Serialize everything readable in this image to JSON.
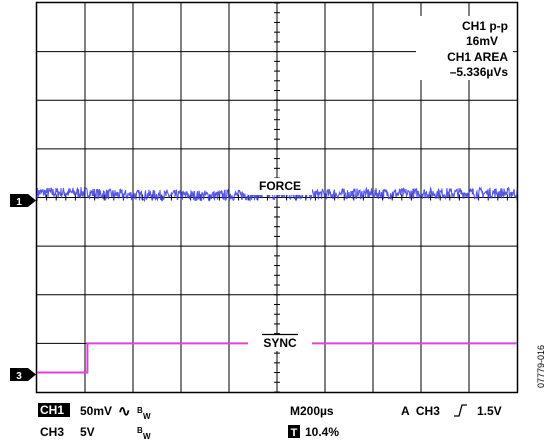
{
  "chart_data": {
    "type": "line",
    "title": "",
    "grid": true,
    "divisions": {
      "x": 10,
      "y": 8
    },
    "x": {
      "unit": "s",
      "per_division": 0.0002,
      "range_divisions": [
        0,
        10
      ]
    },
    "series": [
      {
        "label": "FORCE",
        "channel": "CH1",
        "color": "#3a3ae0",
        "ground_marker": "1",
        "ground_division_from_top": 3.9,
        "volts_per_division": 0.05,
        "points": [
          [
            0.0,
            0.0
          ],
          [
            1.1,
            0.0
          ],
          [
            1.3,
            -0.0015
          ],
          [
            2.0,
            -0.0025
          ],
          [
            3.5,
            -0.003
          ],
          [
            5.0,
            -0.002
          ],
          [
            7.0,
            -0.001
          ],
          [
            9.0,
            -0.0005
          ],
          [
            10.0,
            -0.0003
          ]
        ],
        "noise_pp_volts": 0.016
      },
      {
        "label": "SYNC",
        "label_overline": true,
        "channel": "CH3",
        "color": "#e040e0",
        "ground_marker": "3",
        "ground_division_from_top": 7.6,
        "volts_per_division": 5,
        "points": [
          [
            0.0,
            0.0
          ],
          [
            1.05,
            0.0
          ],
          [
            1.05,
            3.0
          ],
          [
            10.0,
            3.0
          ]
        ]
      }
    ],
    "measurements": [
      {
        "label": "CH1 p-p",
        "value": "16mV"
      },
      {
        "label": "CH1 AREA",
        "value": "–5.336µVs"
      }
    ]
  },
  "status": {
    "ch1_tag": "CH1",
    "ch1_scale": "50mV",
    "coupling_symbol": "∿",
    "bw_label": "B",
    "bw_sub": "W",
    "ch3_tag": "CH3",
    "ch3_scale": "5V",
    "timebase": "M200µs",
    "trigger": "A  CH3",
    "trigger_level": "1.5V",
    "trigger_pos_tag": "T",
    "trigger_pos": "10.4%"
  },
  "figure_id": "07779-016"
}
